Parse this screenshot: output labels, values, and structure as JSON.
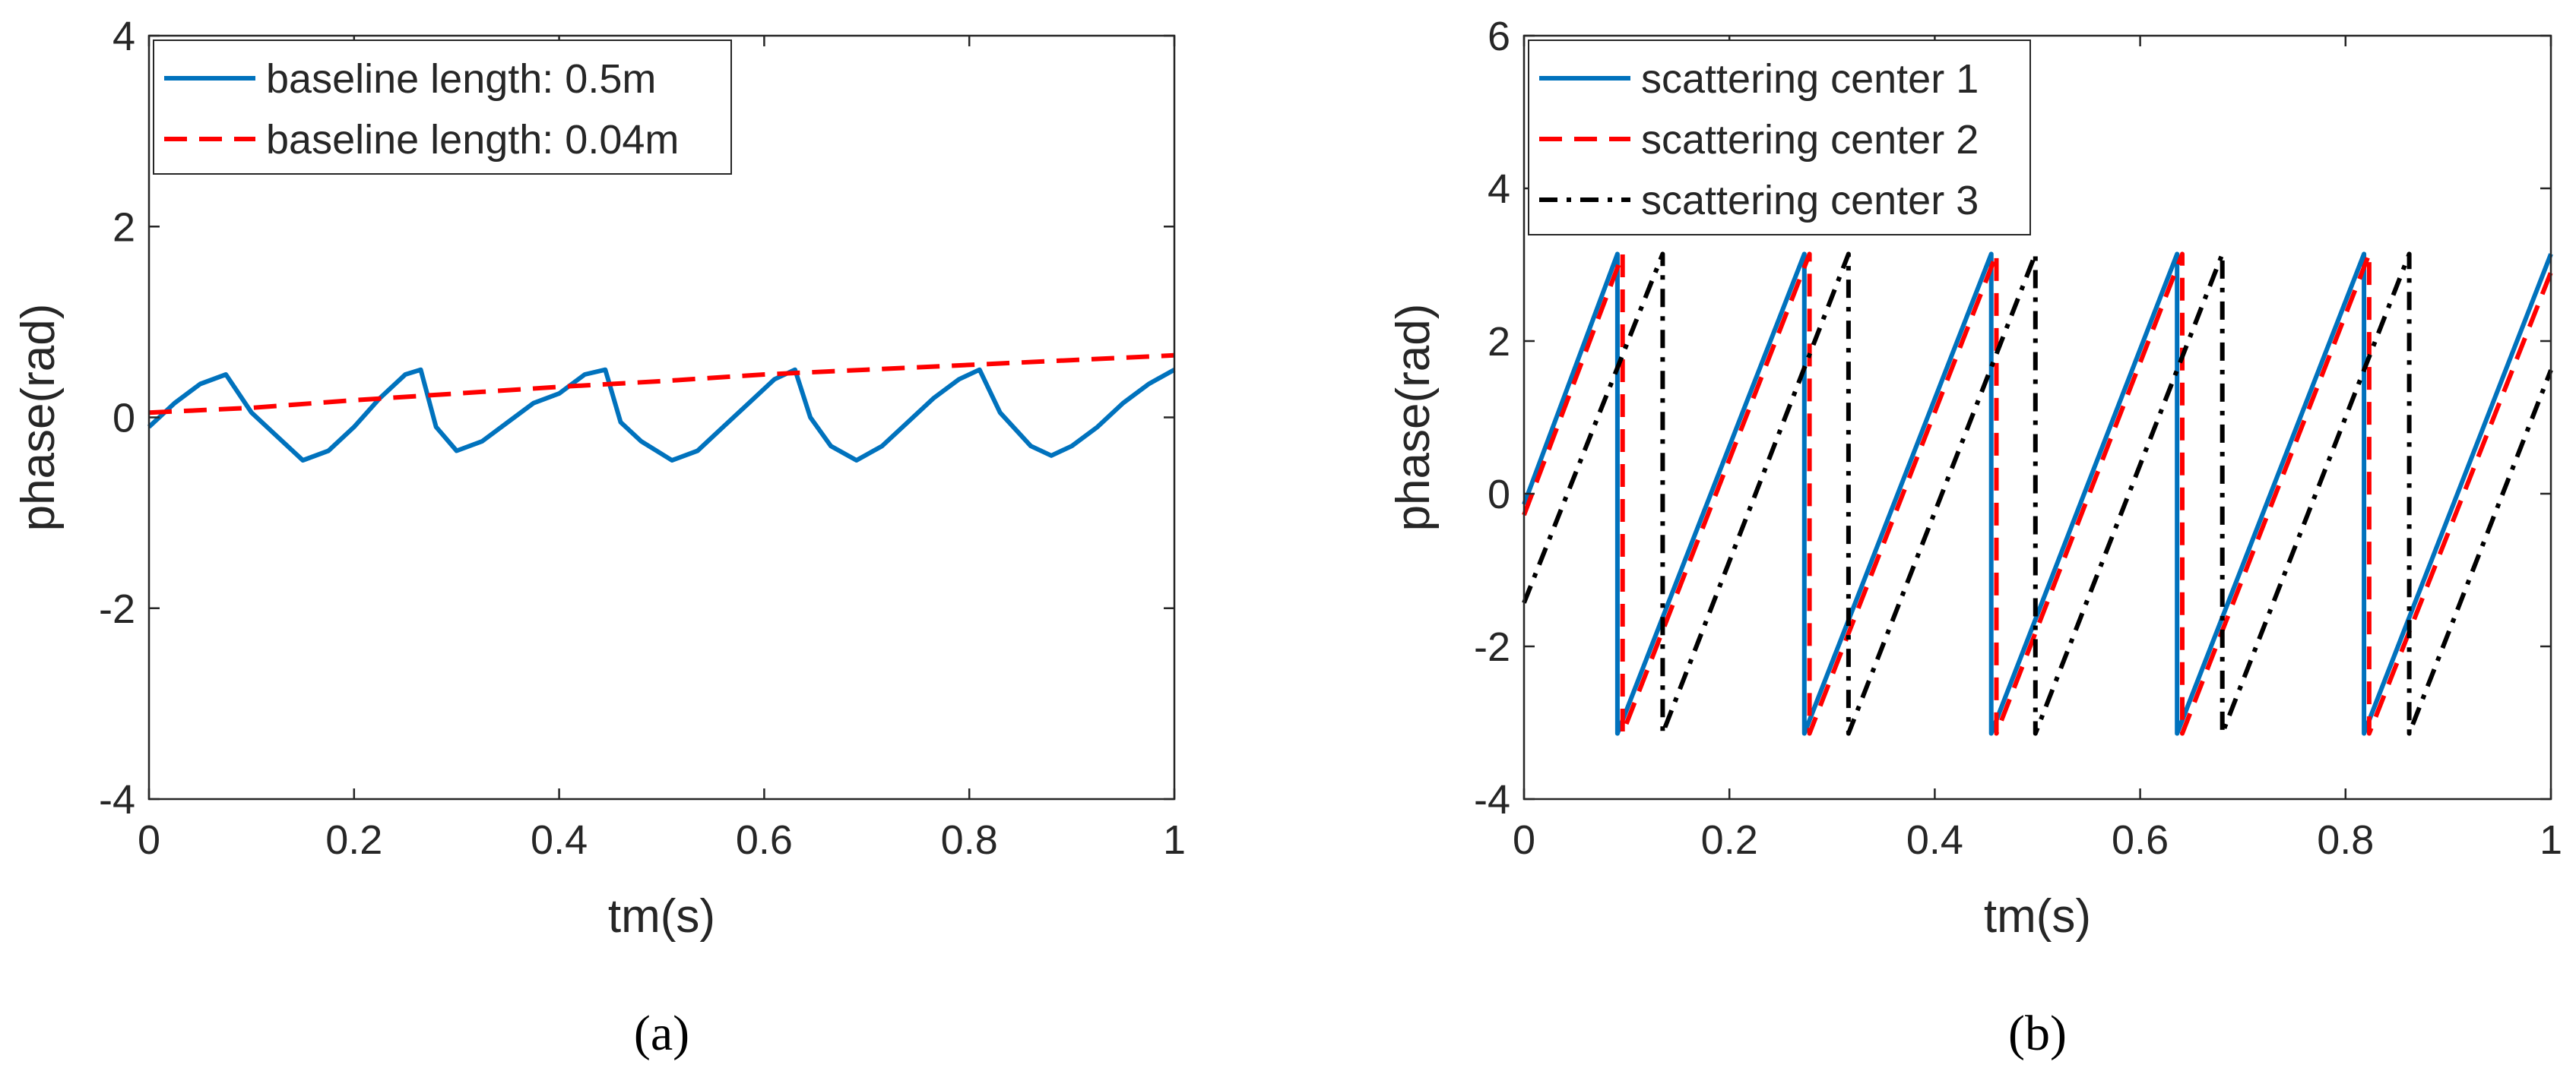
{
  "chart_data": [
    {
      "type": "line",
      "panel_label": "(a)",
      "xlabel": "tm(s)",
      "ylabel": "phase(rad)",
      "xlim": [
        0,
        1
      ],
      "ylim": [
        -4,
        4
      ],
      "xticks": [
        0,
        0.2,
        0.4,
        0.6,
        0.8,
        1
      ],
      "xtick_labels": [
        "0",
        "0.2",
        "0.4",
        "0.6",
        "0.8",
        "1"
      ],
      "yticks": [
        -4,
        -2,
        0,
        2,
        4
      ],
      "ytick_labels": [
        "-4",
        "-2",
        "0",
        "2",
        "4"
      ],
      "legend_position": "top-left",
      "series": [
        {
          "name": "baseline length: 0.5m",
          "color": "#0072BD",
          "style": "solid",
          "x": [
            0,
            0.025,
            0.05,
            0.075,
            0.1,
            0.125,
            0.15,
            0.175,
            0.2,
            0.225,
            0.25,
            0.265,
            0.28,
            0.3,
            0.325,
            0.35,
            0.375,
            0.4,
            0.425,
            0.445,
            0.46,
            0.48,
            0.51,
            0.535,
            0.56,
            0.585,
            0.61,
            0.63,
            0.645,
            0.665,
            0.69,
            0.715,
            0.74,
            0.765,
            0.79,
            0.81,
            0.83,
            0.86,
            0.88,
            0.9,
            0.925,
            0.95,
            0.975,
            1.0
          ],
          "values": [
            -0.1,
            0.15,
            0.35,
            0.45,
            0.05,
            -0.2,
            -0.45,
            -0.35,
            -0.1,
            0.2,
            0.45,
            0.5,
            -0.1,
            -0.35,
            -0.25,
            -0.05,
            0.15,
            0.25,
            0.45,
            0.5,
            -0.05,
            -0.25,
            -0.45,
            -0.35,
            -0.1,
            0.15,
            0.4,
            0.5,
            0.0,
            -0.3,
            -0.45,
            -0.3,
            -0.05,
            0.2,
            0.4,
            0.5,
            0.05,
            -0.3,
            -0.4,
            -0.3,
            -0.1,
            0.15,
            0.35,
            0.5
          ]
        },
        {
          "name": "baseline length: 0.04m",
          "color": "#FF0000",
          "style": "dashed",
          "x": [
            0,
            0.1,
            0.2,
            0.3,
            0.4,
            0.5,
            0.6,
            0.7,
            0.8,
            0.9,
            1.0
          ],
          "values": [
            0.05,
            0.1,
            0.18,
            0.25,
            0.32,
            0.38,
            0.45,
            0.5,
            0.55,
            0.6,
            0.65
          ]
        }
      ]
    },
    {
      "type": "line",
      "panel_label": "(b)",
      "xlabel": "tm(s)",
      "ylabel": "phase(rad)",
      "xlim": [
        0,
        1
      ],
      "ylim": [
        -4,
        6
      ],
      "xticks": [
        0,
        0.2,
        0.4,
        0.6,
        0.8,
        1
      ],
      "xtick_labels": [
        "0",
        "0.2",
        "0.4",
        "0.6",
        "0.8",
        "1"
      ],
      "yticks": [
        -4,
        -2,
        0,
        2,
        4,
        6
      ],
      "ytick_labels": [
        "-4",
        "-2",
        "0",
        "2",
        "4",
        "6"
      ],
      "legend_position": "top-left",
      "series": [
        {
          "name": "scattering center 1",
          "color": "#0072BD",
          "style": "solid",
          "x": [
            0,
            0.091,
            0.091,
            0.273,
            0.273,
            0.455,
            0.455,
            0.636,
            0.636,
            0.818,
            0.818,
            1.0
          ],
          "values": [
            -0.14,
            3.14,
            -3.14,
            3.14,
            -3.14,
            3.14,
            -3.14,
            3.14,
            -3.14,
            3.14,
            -3.14,
            3.14
          ]
        },
        {
          "name": "scattering center 2",
          "color": "#FF0000",
          "style": "dashed",
          "x": [
            0,
            0.096,
            0.096,
            0.278,
            0.278,
            0.46,
            0.46,
            0.641,
            0.641,
            0.823,
            0.823,
            1.0
          ],
          "values": [
            -0.28,
            3.14,
            -3.14,
            3.14,
            -3.14,
            3.14,
            -3.14,
            3.14,
            -3.14,
            3.14,
            -3.14,
            2.9
          ]
        },
        {
          "name": "scattering center 3",
          "color": "#000000",
          "style": "dashdot",
          "x": [
            0,
            0.135,
            0.135,
            0.316,
            0.316,
            0.498,
            0.498,
            0.68,
            0.68,
            0.862,
            0.862,
            1.0
          ],
          "values": [
            -1.43,
            3.14,
            -3.14,
            3.14,
            -3.14,
            3.14,
            -3.14,
            3.14,
            -3.14,
            3.14,
            -3.14,
            1.62
          ]
        }
      ]
    }
  ]
}
